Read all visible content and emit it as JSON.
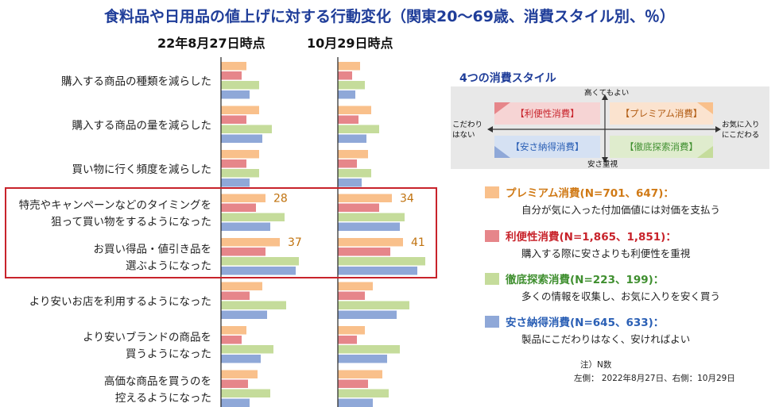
{
  "title": "食料品や日用品の値上げに対する行動変化（関東20～69歳、消費スタイル別、％）",
  "panels": [
    "22年8月27日時点",
    "10月29日時点"
  ],
  "colors": {
    "premium": "#f9c08b",
    "convenience": "#e6868a",
    "thorough": "#c5dc9b",
    "value": "#8fa8d8",
    "title": "#1f3d99",
    "highlight": "#c8232b",
    "datalabel": "#c0720e"
  },
  "chart_data": [
    {
      "type": "bar",
      "orientation": "horizontal",
      "panel": "22年8月27日時点",
      "categories": [
        "購入する商品の種類を減らした",
        "購入する商品の量を減らした",
        "買い物に行く頻度を減らした",
        "特売やキャンペーンなどのタイミングを狙って買い物をするようになった",
        "お買い得品・値引き品を選ぶようになった",
        "より安いお店を利用するようになった",
        "より安いブランドの商品を買うようになった",
        "高価な商品を買うのを控えるようになった"
      ],
      "series": [
        {
          "name": "プレミアム消費",
          "values": [
            16,
            24,
            24,
            28,
            37,
            26,
            16,
            23
          ]
        },
        {
          "name": "利便性消費",
          "values": [
            13,
            16,
            16,
            22,
            28,
            18,
            13,
            17
          ]
        },
        {
          "name": "徹底探索消費",
          "values": [
            24,
            32,
            24,
            40,
            49,
            41,
            33,
            31
          ]
        },
        {
          "name": "安さ納得消費",
          "values": [
            18,
            26,
            18,
            31,
            47,
            29,
            25,
            18
          ]
        }
      ],
      "data_labels": {
        "プレミアム消費": [
          null,
          null,
          null,
          28,
          37,
          null,
          null,
          null
        ]
      },
      "xlim": [
        0,
        55
      ]
    },
    {
      "type": "bar",
      "orientation": "horizontal",
      "panel": "10月29日時点",
      "categories": [
        "購入する商品の種類を減らした",
        "購入する商品の量を減らした",
        "買い物に行く頻度を減らした",
        "特売やキャンペーンなどのタイミングを狙って買い物をするようになった",
        "お買い得品・値引き品を選ぶようになった",
        "より安いお店を利用するようになった",
        "より安いブランドの商品を買うようになった",
        "高価な商品を買うのを控えるようになった"
      ],
      "series": [
        {
          "name": "プレミアム消費",
          "values": [
            14,
            21,
            19,
            34,
            41,
            22,
            17,
            28
          ]
        },
        {
          "name": "利便性消費",
          "values": [
            9,
            13,
            12,
            26,
            33,
            17,
            12,
            19
          ]
        },
        {
          "name": "徹底探索消費",
          "values": [
            17,
            26,
            21,
            42,
            55,
            45,
            39,
            32
          ]
        },
        {
          "name": "安さ納得消費",
          "values": [
            11,
            18,
            15,
            39,
            50,
            37,
            31,
            22
          ]
        }
      ],
      "data_labels": {
        "プレミアム消費": [
          null,
          null,
          null,
          34,
          41,
          null,
          null,
          null
        ]
      },
      "xlim": [
        0,
        55
      ]
    }
  ],
  "category_lines": [
    [
      "購入する商品の種類を減らした"
    ],
    [
      "購入する商品の量を減らした"
    ],
    [
      "買い物に行く頻度を減らした"
    ],
    [
      "特売やキャンペーンなどのタイミングを",
      "狙って買い物をするようになった"
    ],
    [
      "お買い得品・値引き品を",
      "選ぶようになった"
    ],
    [
      "より安いお店を利用するようになった"
    ],
    [
      "より安いブランドの商品を",
      "買うようになった"
    ],
    [
      "高価な商品を買うのを",
      "控えるようになった"
    ]
  ],
  "legend": {
    "title": "4つの消費スタイル",
    "axis": {
      "top": "高くてもよい",
      "bottom": "安さ重視",
      "left": "こだわり\nはない",
      "right": "お気に入り\nにこだわる"
    },
    "quadrants": {
      "top_left": "【利便性消費】",
      "top_right": "【プレミアム消費】",
      "bottom_left": "【安さ納得消費】",
      "bottom_right": "【徹底探索消費】"
    },
    "styles": [
      {
        "name": "プレミアム消費(N=701、647)：",
        "desc": "自分が気に入った付加価値には対価を支払う",
        "color": "#f9c08b",
        "text_color": "#d07a16"
      },
      {
        "name": "利便性消費(N=1,865、1,851)：",
        "desc": "購入する際に安さよりも利便性を重視",
        "color": "#e6868a",
        "text_color": "#c8232b"
      },
      {
        "name": "徹底探索消費(N=223、199)：",
        "desc": "多くの情報を収集し、お気に入りを安く買う",
        "color": "#c5dc9b",
        "text_color": "#3f8f2f"
      },
      {
        "name": "安さ納得消費(N=645、633)：",
        "desc": "製品にこだわりはなく、安ければよい",
        "color": "#8fa8d8",
        "text_color": "#2a5fb5"
      }
    ]
  },
  "notes": [
    "注）N数",
    "左側： 2022年8月27日、右側：10月29日"
  ]
}
